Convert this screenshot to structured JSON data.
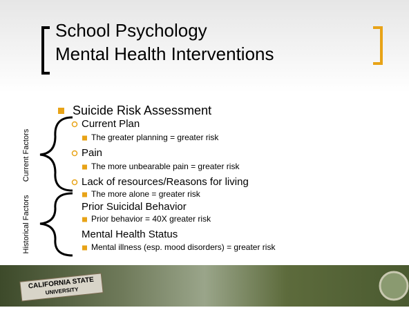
{
  "title": [
    "School Psychology",
    "Mental Health Interventions"
  ],
  "heading": "Suicide Risk Assessment",
  "side_labels": [
    "Current Factors",
    "Historical Factors"
  ],
  "items": [
    {
      "label": "Current Plan",
      "detail": "The greater planning = greater risk"
    },
    {
      "label": "Pain",
      "detail": "The more unbearable pain = greater risk"
    },
    {
      "label": "Lack of resources/Reasons for living",
      "detail": "The more alone = greater risk"
    },
    {
      "label": "Prior Suicidal Behavior",
      "detail": "Prior behavior = 40X greater risk"
    },
    {
      "label": "Mental Health Status",
      "detail": "Mental illness (esp. mood disorders) = greater risk"
    }
  ],
  "footer_sign": [
    "CALIFORNIA STATE",
    "UNIVERSITY"
  ]
}
